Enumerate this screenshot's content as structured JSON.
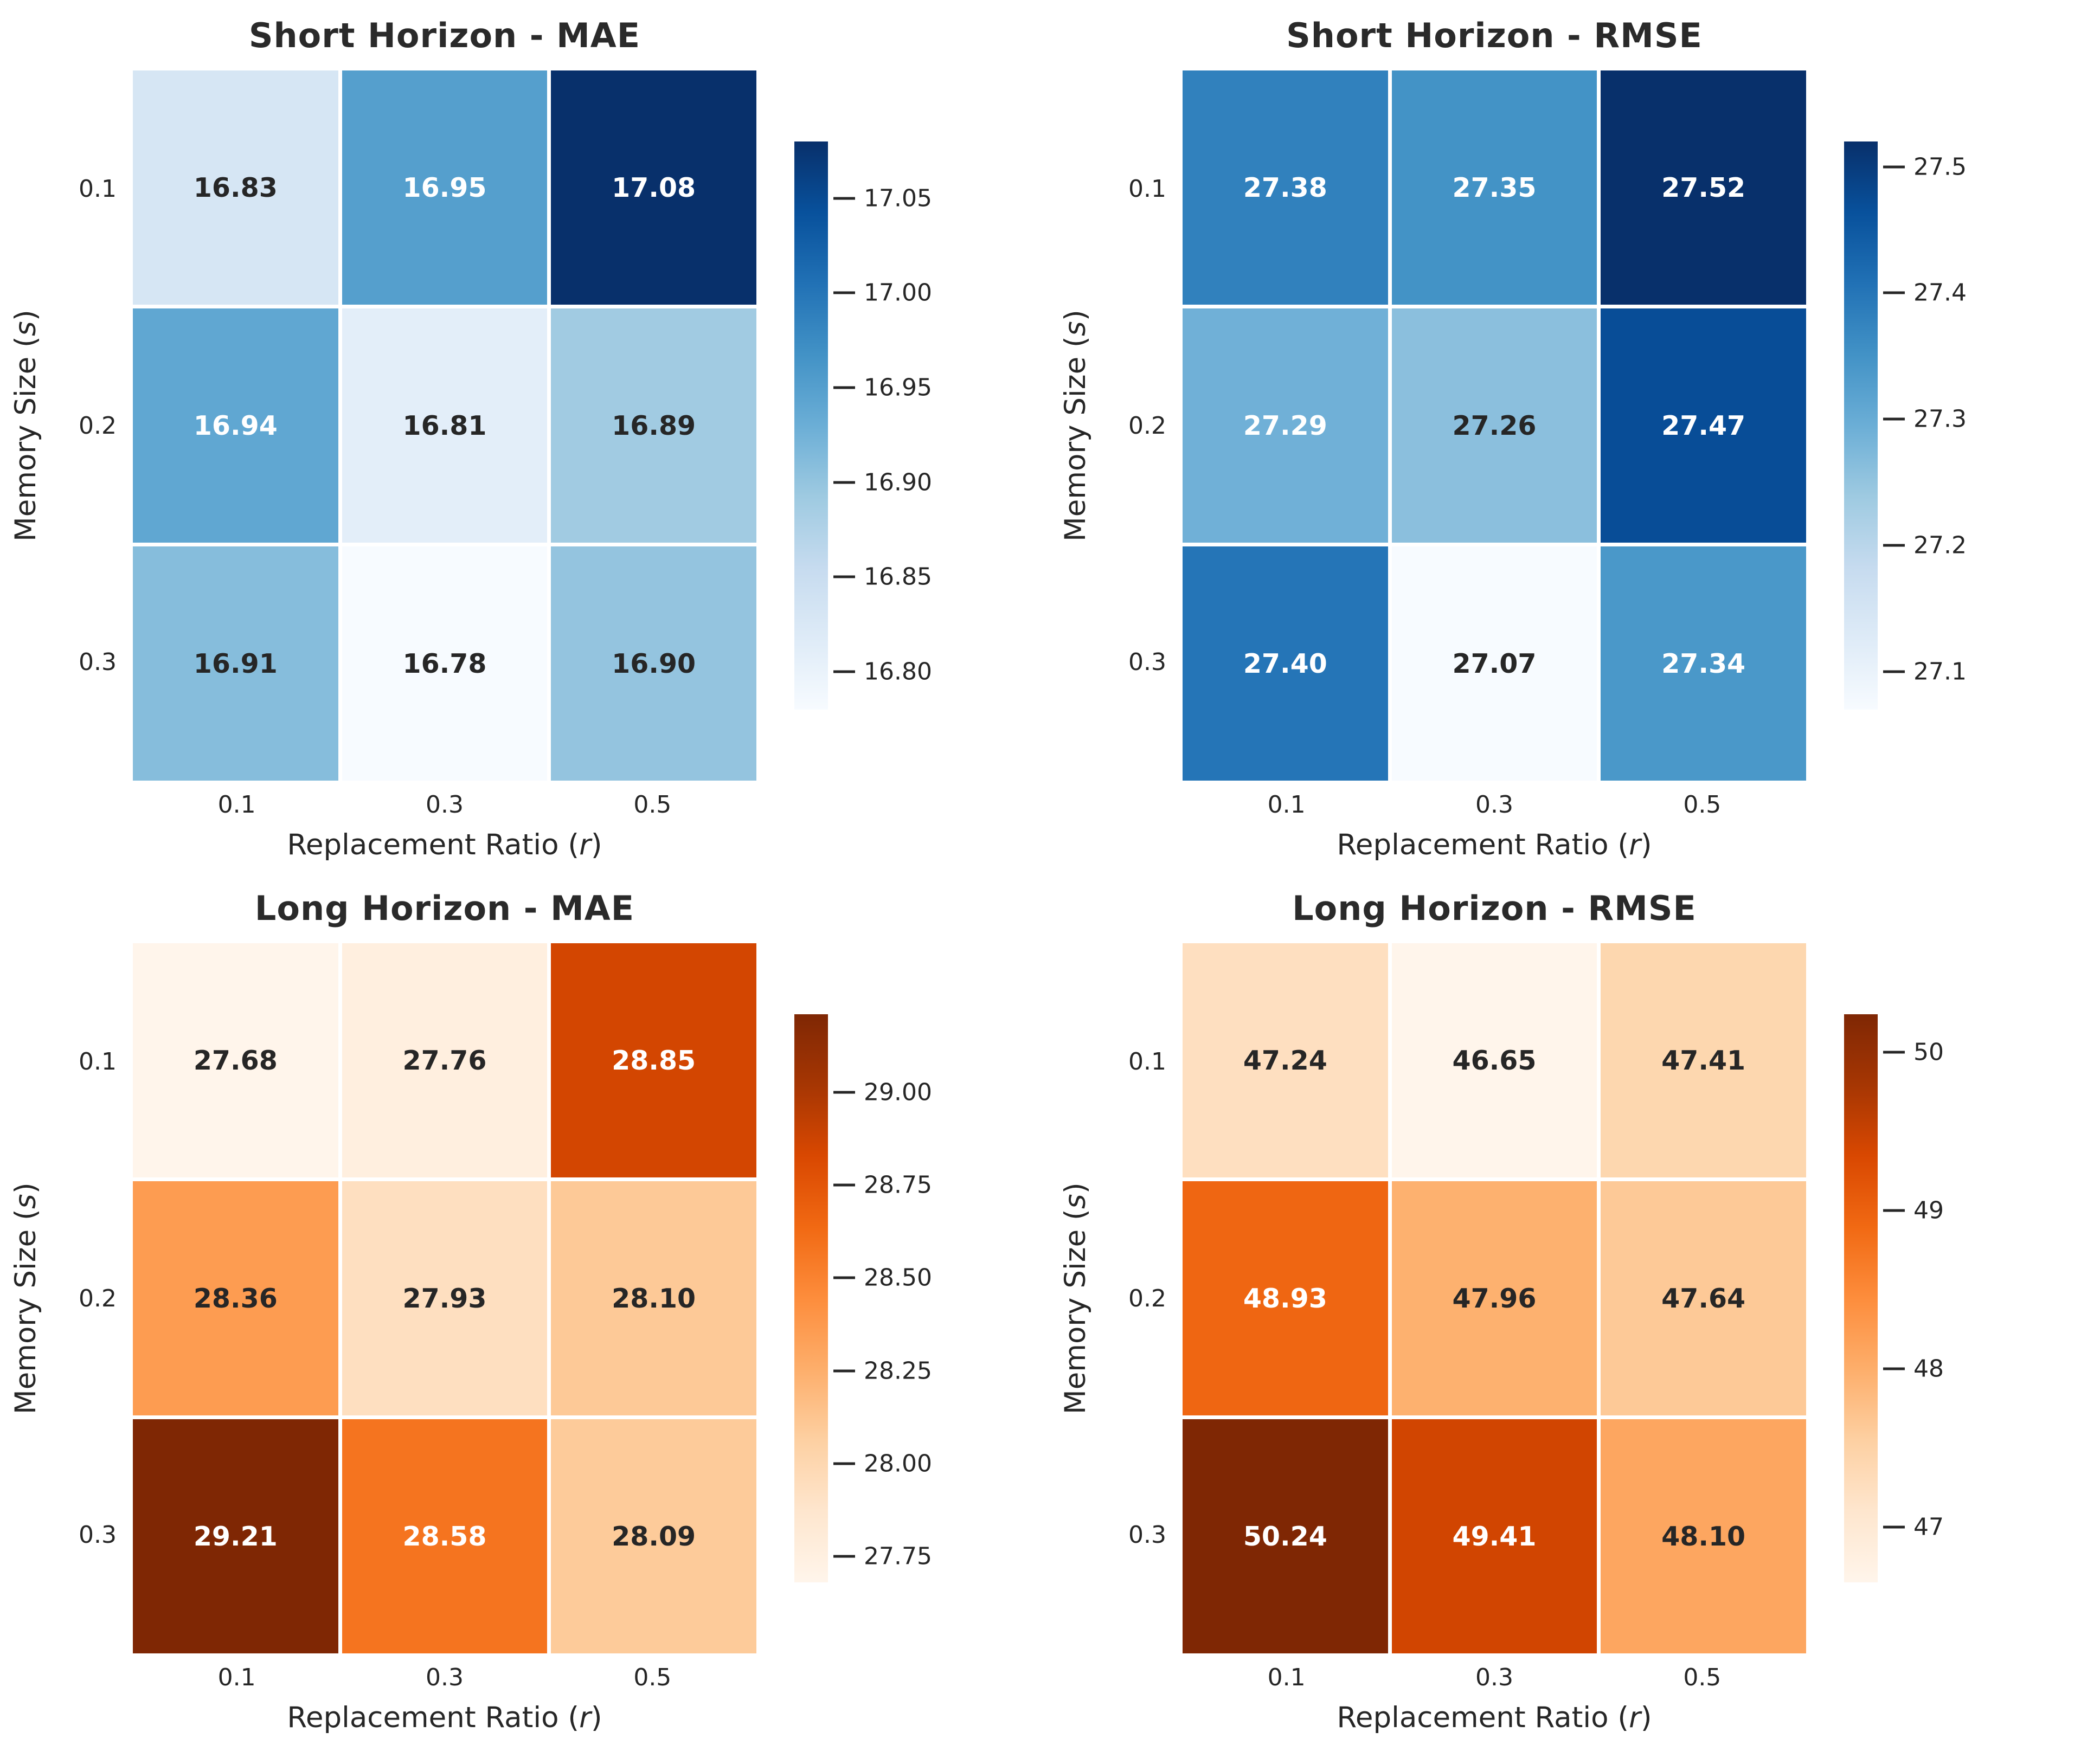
{
  "figure_background": "#ffffff",
  "text_colors": {
    "axis_text": "#262626",
    "title_text": "#2a2a2a",
    "annotation_dark": "#262626",
    "annotation_light": "#ffffff"
  },
  "colormaps": {
    "Blues": [
      "#f7fbff",
      "#deebf7",
      "#c6dbef",
      "#9ecae1",
      "#6baed6",
      "#4292c6",
      "#2171b5",
      "#08519c",
      "#08306b"
    ],
    "Oranges": [
      "#fff5eb",
      "#fee6ce",
      "#fdd0a2",
      "#fdae6b",
      "#fd8d3c",
      "#f16913",
      "#d94801",
      "#a63603",
      "#7f2704"
    ]
  },
  "luminance_threshold": 0.408,
  "chart_data": [
    {
      "type": "heatmap",
      "title": "Short Horizon - MAE",
      "xlabel": {
        "prefix": "Replacement Ratio (",
        "var": "r",
        "suffix": ")"
      },
      "ylabel": {
        "prefix": "Memory Size (",
        "var": "s",
        "suffix": ")"
      },
      "x_tick_labels": [
        "0.1",
        "0.3",
        "0.5"
      ],
      "y_tick_labels": [
        "0.1",
        "0.2",
        "0.3"
      ],
      "rows": [
        [
          16.83,
          16.95,
          17.08
        ],
        [
          16.94,
          16.81,
          16.89
        ],
        [
          16.91,
          16.78,
          16.9
        ]
      ],
      "cell_labels": [
        [
          "16.83",
          "16.95",
          "17.08"
        ],
        [
          "16.94",
          "16.81",
          "16.89"
        ],
        [
          "16.91",
          "16.78",
          "16.90"
        ]
      ],
      "colormap": "Blues",
      "vmin": 16.78,
      "vmax": 17.08,
      "colorbar": {
        "tick_values": [
          16.8,
          16.85,
          16.9,
          16.95,
          17.0,
          17.05
        ],
        "tick_labels": [
          "16.80",
          "16.85",
          "16.90",
          "16.95",
          "17.00",
          "17.05"
        ]
      }
    },
    {
      "type": "heatmap",
      "title": "Short Horizon - RMSE",
      "xlabel": {
        "prefix": "Replacement Ratio (",
        "var": "r",
        "suffix": ")"
      },
      "ylabel": {
        "prefix": "Memory Size (",
        "var": "s",
        "suffix": ")"
      },
      "x_tick_labels": [
        "0.1",
        "0.3",
        "0.5"
      ],
      "y_tick_labels": [
        "0.1",
        "0.2",
        "0.3"
      ],
      "rows": [
        [
          27.38,
          27.35,
          27.52
        ],
        [
          27.29,
          27.26,
          27.47
        ],
        [
          27.4,
          27.07,
          27.34
        ]
      ],
      "cell_labels": [
        [
          "27.38",
          "27.35",
          "27.52"
        ],
        [
          "27.29",
          "27.26",
          "27.47"
        ],
        [
          "27.40",
          "27.07",
          "27.34"
        ]
      ],
      "colormap": "Blues",
      "vmin": 27.07,
      "vmax": 27.52,
      "colorbar": {
        "tick_values": [
          27.1,
          27.2,
          27.3,
          27.4,
          27.5
        ],
        "tick_labels": [
          "27.1",
          "27.2",
          "27.3",
          "27.4",
          "27.5"
        ]
      }
    },
    {
      "type": "heatmap",
      "title": "Long Horizon - MAE",
      "xlabel": {
        "prefix": "Replacement Ratio (",
        "var": "r",
        "suffix": ")"
      },
      "ylabel": {
        "prefix": "Memory Size (",
        "var": "s",
        "suffix": ")"
      },
      "x_tick_labels": [
        "0.1",
        "0.3",
        "0.5"
      ],
      "y_tick_labels": [
        "0.1",
        "0.2",
        "0.3"
      ],
      "rows": [
        [
          27.68,
          27.76,
          28.85
        ],
        [
          28.36,
          27.93,
          28.1
        ],
        [
          29.21,
          28.58,
          28.09
        ]
      ],
      "cell_labels": [
        [
          "27.68",
          "27.76",
          "28.85"
        ],
        [
          "28.36",
          "27.93",
          "28.10"
        ],
        [
          "29.21",
          "28.58",
          "28.09"
        ]
      ],
      "colormap": "Oranges",
      "vmin": 27.68,
      "vmax": 29.21,
      "colorbar": {
        "tick_values": [
          27.75,
          28.0,
          28.25,
          28.5,
          28.75,
          29.0
        ],
        "tick_labels": [
          "27.75",
          "28.00",
          "28.25",
          "28.50",
          "28.75",
          "29.00"
        ]
      }
    },
    {
      "type": "heatmap",
      "title": "Long Horizon - RMSE",
      "xlabel": {
        "prefix": "Replacement Ratio (",
        "var": "r",
        "suffix": ")"
      },
      "ylabel": {
        "prefix": "Memory Size (",
        "var": "s",
        "suffix": ")"
      },
      "x_tick_labels": [
        "0.1",
        "0.3",
        "0.5"
      ],
      "y_tick_labels": [
        "0.1",
        "0.2",
        "0.3"
      ],
      "rows": [
        [
          47.24,
          46.65,
          47.41
        ],
        [
          48.93,
          47.96,
          47.64
        ],
        [
          50.24,
          49.41,
          48.1
        ]
      ],
      "cell_labels": [
        [
          "47.24",
          "46.65",
          "47.41"
        ],
        [
          "48.93",
          "47.96",
          "47.64"
        ],
        [
          "50.24",
          "49.41",
          "48.10"
        ]
      ],
      "colormap": "Oranges",
      "vmin": 46.65,
      "vmax": 50.24,
      "colorbar": {
        "tick_values": [
          47,
          48,
          49,
          50
        ],
        "tick_labels": [
          "47",
          "48",
          "49",
          "50"
        ]
      }
    }
  ]
}
